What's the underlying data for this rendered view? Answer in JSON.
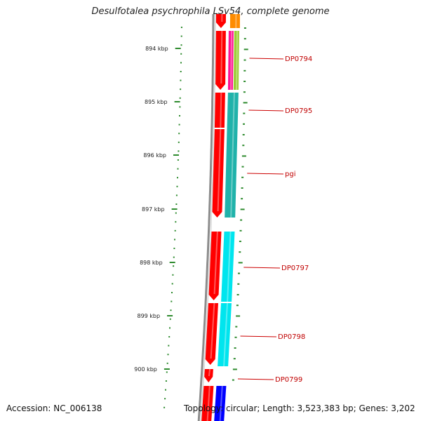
{
  "title": "Desulfotalea psychrophila LSv54, complete genome",
  "footer": {
    "accession": "Accession: NC_006138",
    "stats": "Topology: circular; Length: 3,523,383 bp; Genes: 3,202"
  },
  "colors": {
    "backbone": "#8c8c8c",
    "ticks": "#2e8b2e",
    "forward_cds": "#ff0000",
    "label": "#cc0000",
    "cyan": "#00e5ee",
    "teal": "#20b2aa",
    "orange": "#ff8c00",
    "magenta": "#ff1493",
    "green": "#9acd32",
    "blue": "#0000ff"
  },
  "scale": {
    "labels": [
      "894 kbp",
      "895 kbp",
      "896 kbp",
      "897 kbp",
      "898 kbp",
      "899 kbp",
      "900 kbp"
    ]
  },
  "genes": [
    "DP0794",
    "DP0795",
    "pgi",
    "DP0797",
    "DP0798",
    "DP0799"
  ]
}
